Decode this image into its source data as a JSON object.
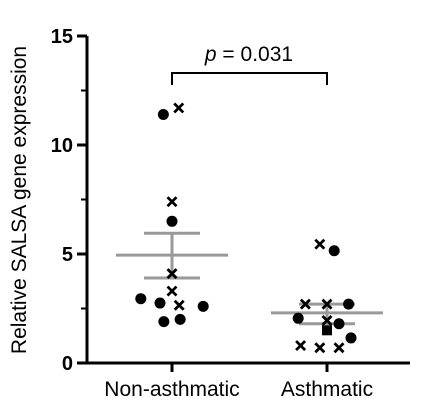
{
  "chart_data": {
    "type": "scatter",
    "ylabel": "Relative SALSA gene expression",
    "xlabel": "",
    "ylim": [
      0,
      15
    ],
    "yticks": [
      0,
      5,
      10,
      15
    ],
    "grid": false,
    "categories": [
      "Non-asthmatic",
      "Asthmatic"
    ],
    "groups": [
      {
        "category": "Non-asthmatic",
        "mean": 4.95,
        "sem_low": 3.9,
        "sem_high": 5.95,
        "mean_color": "#999999",
        "points": [
          {
            "marker": "circle",
            "y": 11.4,
            "offset": -0.18
          },
          {
            "marker": "cross",
            "y": 11.7,
            "offset": 0.14
          },
          {
            "marker": "cross",
            "y": 7.4,
            "offset": 0.0
          },
          {
            "marker": "circle",
            "y": 6.5,
            "offset": 0.0
          },
          {
            "marker": "cross",
            "y": 4.1,
            "offset": 0.0
          },
          {
            "marker": "cross",
            "y": 3.3,
            "offset": 0.0
          },
          {
            "marker": "circle",
            "y": 2.95,
            "offset": -0.65
          },
          {
            "marker": "circle",
            "y": 2.75,
            "offset": -0.25
          },
          {
            "marker": "cross",
            "y": 2.65,
            "offset": 0.15
          },
          {
            "marker": "circle",
            "y": 2.6,
            "offset": 0.65
          },
          {
            "marker": "circle",
            "y": 1.9,
            "offset": -0.17
          },
          {
            "marker": "circle",
            "y": 2.0,
            "offset": 0.17
          }
        ]
      },
      {
        "category": "Asthmatic",
        "mean": 2.3,
        "sem_low": 1.8,
        "sem_high": 2.7,
        "mean_color": "#999999",
        "points": [
          {
            "marker": "cross",
            "y": 5.45,
            "offset": -0.15
          },
          {
            "marker": "circle",
            "y": 5.15,
            "offset": 0.15
          },
          {
            "marker": "cross",
            "y": 2.7,
            "offset": -0.45
          },
          {
            "marker": "cross",
            "y": 2.7,
            "offset": 0.0
          },
          {
            "marker": "circle",
            "y": 2.7,
            "offset": 0.45
          },
          {
            "marker": "circle",
            "y": 2.05,
            "offset": -0.6
          },
          {
            "marker": "cross",
            "y": 1.95,
            "offset": 0.0
          },
          {
            "marker": "circle",
            "y": 1.8,
            "offset": 0.25
          },
          {
            "marker": "square",
            "y": 1.5,
            "offset": 0.0
          },
          {
            "marker": "circle",
            "y": 1.15,
            "offset": 0.5
          },
          {
            "marker": "cross",
            "y": 0.8,
            "offset": -0.55
          },
          {
            "marker": "cross",
            "y": 0.7,
            "offset": -0.15
          },
          {
            "marker": "cross",
            "y": 0.7,
            "offset": 0.25
          }
        ]
      }
    ],
    "annotation": {
      "text": "p = 0.031",
      "p_symbol": "p",
      "p_rest": " = 0.031",
      "between": [
        "Non-asthmatic",
        "Asthmatic"
      ],
      "bracket_y": 13.3
    }
  }
}
